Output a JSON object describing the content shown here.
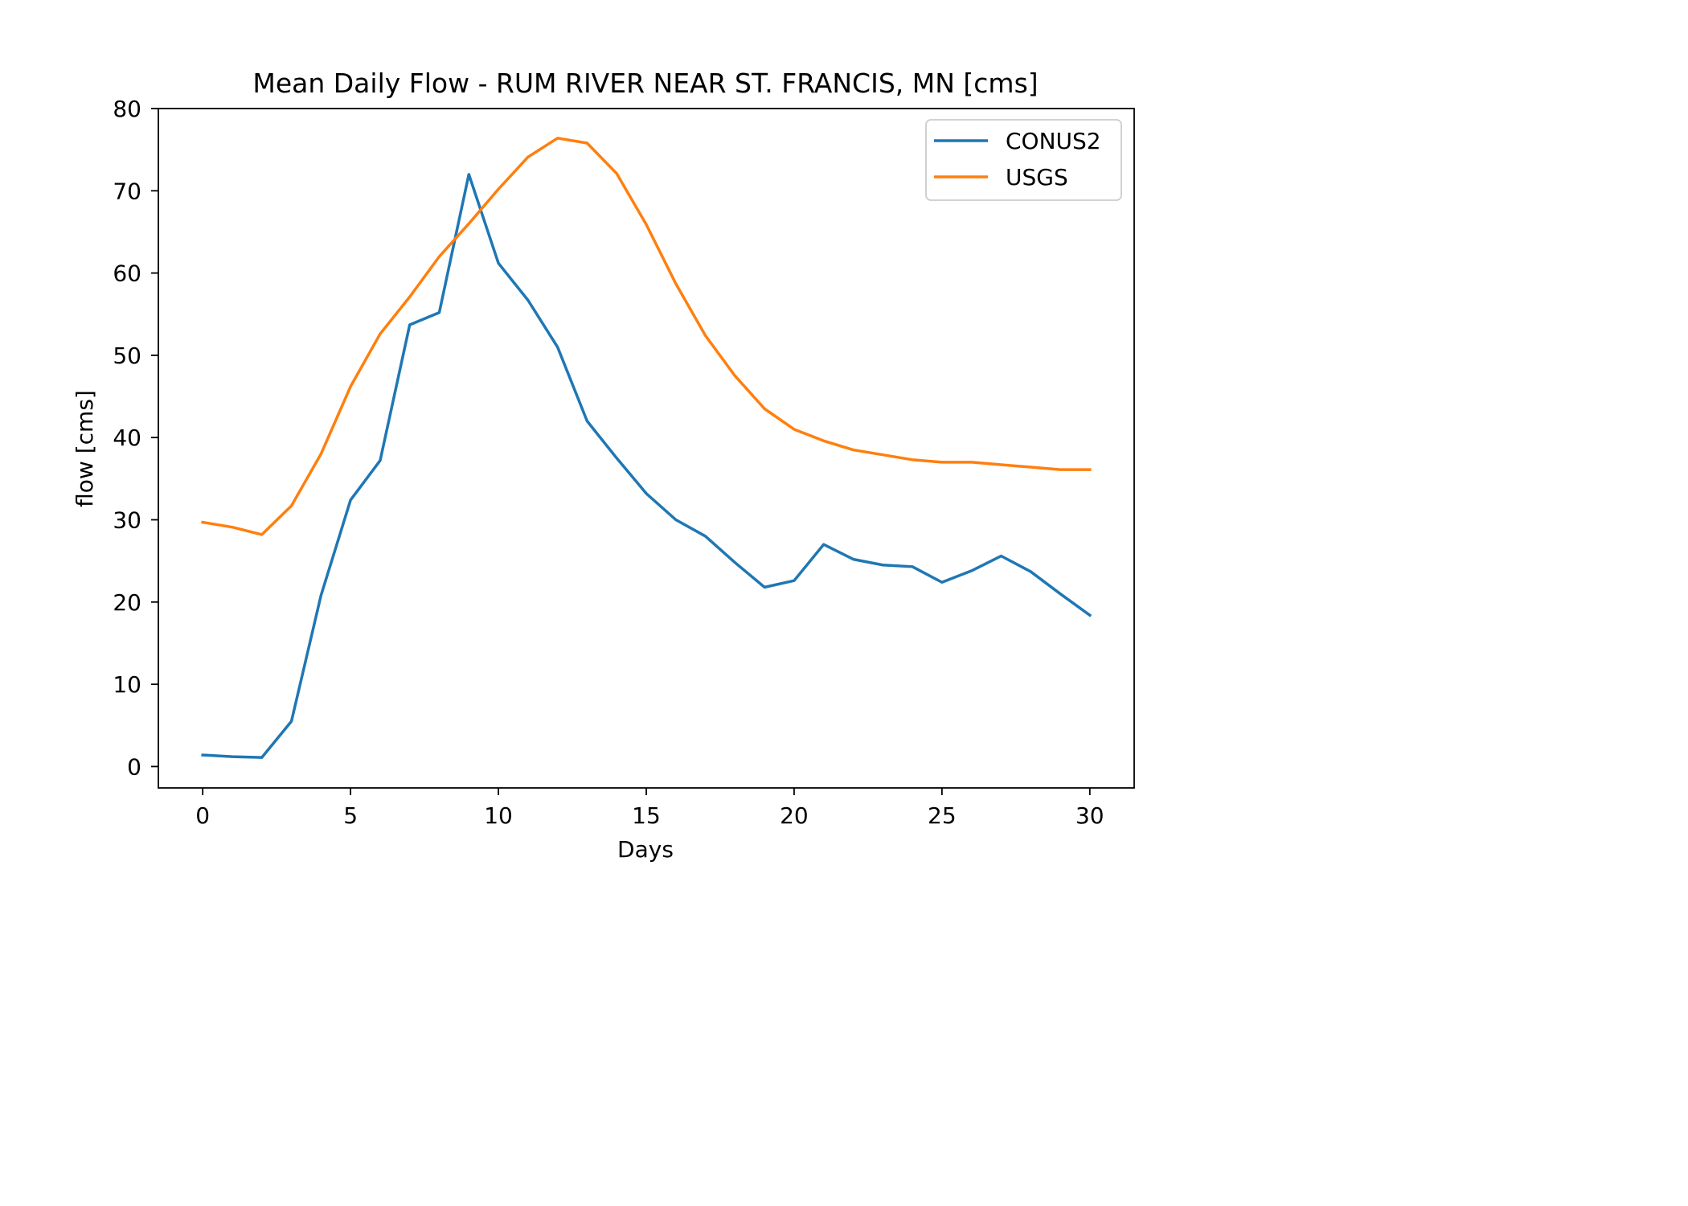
{
  "chart_data": {
    "type": "line",
    "title": "Mean Daily Flow - RUM RIVER NEAR ST. FRANCIS, MN [cms]",
    "xlabel": "Days",
    "ylabel": "flow [cms]",
    "xlim": [
      -1.5,
      31.5
    ],
    "ylim": [
      -2.6,
      80
    ],
    "xticks": [
      0,
      5,
      10,
      15,
      20,
      25,
      30
    ],
    "yticks": [
      0,
      10,
      20,
      30,
      40,
      50,
      60,
      70,
      80
    ],
    "grid": false,
    "legend_position": "upper right",
    "x": [
      0,
      1,
      2,
      3,
      4,
      5,
      6,
      7,
      8,
      9,
      10,
      11,
      12,
      13,
      14,
      15,
      16,
      17,
      18,
      19,
      20,
      21,
      22,
      23,
      24,
      25,
      26,
      27,
      28,
      29,
      30
    ],
    "series": [
      {
        "name": "CONUS2",
        "color": "#1f77b4",
        "values": [
          1.4,
          1.2,
          1.1,
          5.5,
          20.8,
          32.4,
          37.2,
          53.7,
          55.2,
          72.0,
          61.2,
          56.7,
          51.0,
          42.0,
          37.5,
          33.2,
          30.0,
          28.0,
          24.8,
          21.8,
          22.6,
          27.0,
          25.2,
          24.5,
          24.3,
          22.4,
          23.8,
          25.6,
          23.7,
          21.0,
          18.4
        ]
      },
      {
        "name": "USGS",
        "color": "#ff7f0e",
        "values": [
          29.7,
          29.1,
          28.2,
          31.7,
          38.0,
          46.2,
          52.6,
          57.1,
          62.0,
          66.0,
          70.2,
          74.1,
          76.4,
          75.8,
          72.1,
          65.9,
          58.7,
          52.4,
          47.5,
          43.5,
          41.0,
          39.6,
          38.5,
          37.9,
          37.3,
          37.0,
          37.0,
          36.7,
          36.4,
          36.1,
          36.1
        ]
      }
    ]
  }
}
